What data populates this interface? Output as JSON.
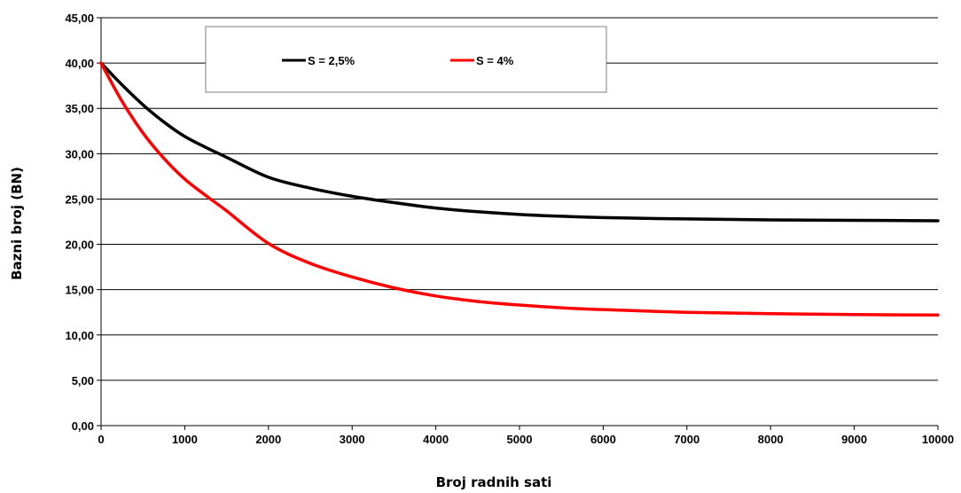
{
  "chart_data": {
    "type": "line",
    "title": "",
    "xlabel": "Broj radnih sati",
    "ylabel": "Bazni broj (BN)",
    "xlim": [
      0,
      10000
    ],
    "ylim": [
      0,
      45
    ],
    "x_ticks": [
      "0",
      "1000",
      "2000",
      "3000",
      "4000",
      "5000",
      "6000",
      "7000",
      "8000",
      "9000",
      "10000"
    ],
    "y_ticks": [
      "0,00",
      "5,00",
      "10,00",
      "15,00",
      "20,00",
      "25,00",
      "30,00",
      "35,00",
      "40,00",
      "45,00"
    ],
    "grid": "horizontal",
    "legend_position": "top",
    "x": [
      0,
      250,
      500,
      750,
      1000,
      1250,
      1500,
      2000,
      2500,
      3000,
      3500,
      4000,
      4500,
      5000,
      5500,
      6000,
      7000,
      8000,
      9000,
      10000
    ],
    "series": [
      {
        "name": "S = 2,5%",
        "color": "#000000",
        "values": [
          40.0,
          37.6,
          35.4,
          33.5,
          31.9,
          30.7,
          29.6,
          27.4,
          26.2,
          25.3,
          24.6,
          24.0,
          23.6,
          23.3,
          23.1,
          22.95,
          22.8,
          22.7,
          22.65,
          22.6
        ]
      },
      {
        "name": "S = 4%",
        "color": "#ff0000",
        "values": [
          40.0,
          35.8,
          32.3,
          29.5,
          27.2,
          25.4,
          23.7,
          20.1,
          17.9,
          16.4,
          15.2,
          14.3,
          13.7,
          13.3,
          13.0,
          12.8,
          12.5,
          12.35,
          12.25,
          12.2
        ]
      }
    ]
  }
}
